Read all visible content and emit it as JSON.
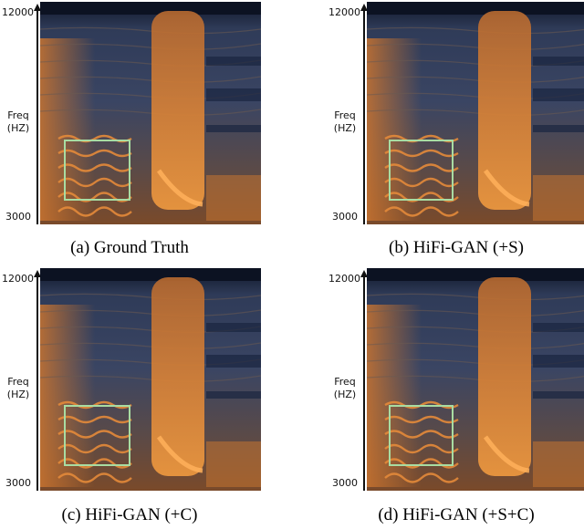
{
  "y_axis": {
    "top_tick": "12000",
    "bottom_tick": "3000",
    "label_line1": "Freq",
    "label_line2": "(HZ)"
  },
  "panels": [
    {
      "caption": "(a) Ground Truth"
    },
    {
      "caption": "(b) HiFi-GAN (+S)"
    },
    {
      "caption": "(c) HiFi-GAN (+C)"
    },
    {
      "caption": "(d) HiFi-GAN (+S+C)"
    }
  ],
  "colors": {
    "spectrogram_low": "#17223d",
    "spectrogram_mid": "#3a4a6b",
    "spectrogram_high": "#e07a2a",
    "highlight_box": "#a8dca2"
  }
}
